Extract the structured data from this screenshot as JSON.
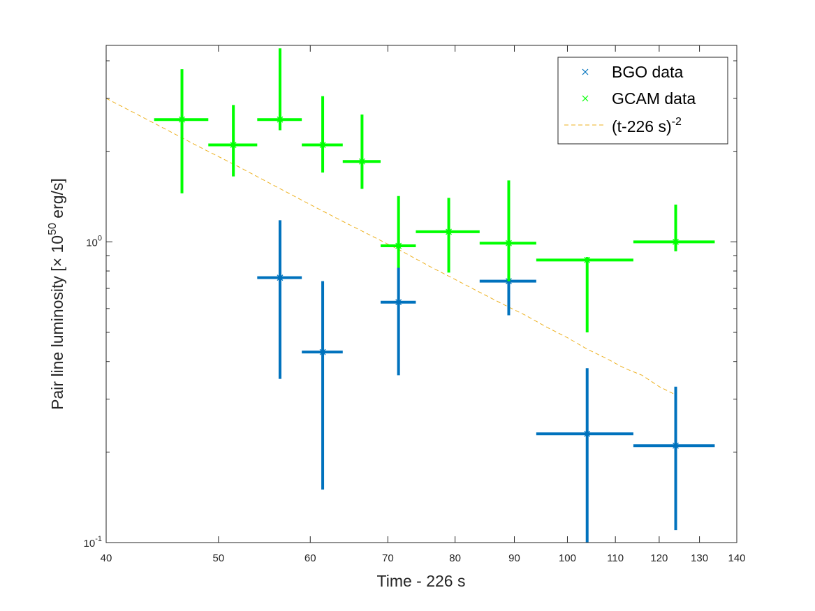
{
  "chart_data": {
    "type": "scatter",
    "xlabel": "Time - 226 s",
    "ylabel": {
      "prefix": "Pair line luminosity [",
      "times": "×",
      "base": " 10",
      "exponent": "50",
      "suffix": " erg/s]"
    },
    "x_scale": "log",
    "y_scale": "log",
    "xlim": [
      40,
      140
    ],
    "ylim": [
      0.1,
      4.5
    ],
    "x_ticks": [
      40,
      50,
      60,
      70,
      80,
      90,
      100,
      110,
      120,
      130,
      140
    ],
    "x_tick_labels": [
      "40",
      "50",
      "60",
      "70",
      "80",
      "90",
      "100",
      "110",
      "120",
      "130",
      "140"
    ],
    "y_ticks": [
      {
        "value": 0.1,
        "base": "10",
        "exp": "-1"
      },
      {
        "value": 1,
        "base": "10",
        "exp": "0"
      }
    ],
    "grid": false,
    "legend_position": "top-right",
    "series": [
      {
        "name": "BGO data",
        "color": "#0072bd",
        "marker": "x",
        "points": [
          {
            "x": 56.5,
            "xlo": 54,
            "xhi": 59,
            "y": 0.76,
            "ylo": 0.35,
            "yhi": 1.18
          },
          {
            "x": 61.5,
            "xlo": 59,
            "xhi": 64,
            "y": 0.43,
            "ylo": 0.15,
            "yhi": 0.74
          },
          {
            "x": 71.5,
            "xlo": 69,
            "xhi": 74,
            "y": 0.63,
            "ylo": 0.36,
            "yhi": 0.82
          },
          {
            "x": 89,
            "xlo": 84,
            "xhi": 94,
            "y": 0.74,
            "ylo": 0.57,
            "yhi": 0.78
          },
          {
            "x": 104,
            "xlo": 94,
            "xhi": 114,
            "y": 0.23,
            "ylo": 0.1,
            "yhi": 0.38
          },
          {
            "x": 124,
            "xlo": 114,
            "xhi": 134,
            "y": 0.21,
            "ylo": 0.11,
            "yhi": 0.33
          }
        ]
      },
      {
        "name": "GCAM data",
        "color": "#00ff00",
        "marker": "x",
        "points": [
          {
            "x": 46.5,
            "xlo": 44,
            "xhi": 49,
            "y": 2.55,
            "ylo": 1.45,
            "yhi": 3.75
          },
          {
            "x": 51.5,
            "xlo": 49,
            "xhi": 54,
            "y": 2.1,
            "ylo": 1.65,
            "yhi": 2.85
          },
          {
            "x": 56.5,
            "xlo": 54,
            "xhi": 59,
            "y": 2.55,
            "ylo": 2.35,
            "yhi": 4.4
          },
          {
            "x": 61.5,
            "xlo": 59,
            "xhi": 64,
            "y": 2.1,
            "ylo": 1.7,
            "yhi": 3.05
          },
          {
            "x": 66.5,
            "xlo": 64,
            "xhi": 69,
            "y": 1.85,
            "ylo": 1.5,
            "yhi": 2.65
          },
          {
            "x": 71.5,
            "xlo": 69,
            "xhi": 74,
            "y": 0.97,
            "ylo": 0.82,
            "yhi": 1.42
          },
          {
            "x": 79,
            "xlo": 74,
            "xhi": 84,
            "y": 1.08,
            "ylo": 0.79,
            "yhi": 1.4
          },
          {
            "x": 89,
            "xlo": 84,
            "xhi": 94,
            "y": 0.99,
            "ylo": 0.74,
            "yhi": 1.6
          },
          {
            "x": 104,
            "xlo": 94,
            "xhi": 114,
            "y": 0.87,
            "ylo": 0.5,
            "yhi": 0.89
          },
          {
            "x": 124,
            "xlo": 114,
            "xhi": 134,
            "y": 1.0,
            "ylo": 0.93,
            "yhi": 1.33
          }
        ]
      }
    ],
    "model_line": {
      "name": "(t-226 s)",
      "name_exponent": "-2",
      "color": "#edb120",
      "style": "dashed",
      "x": [
        40,
        44,
        48,
        52,
        56,
        60,
        64,
        68,
        72,
        76,
        80,
        84,
        88,
        92,
        96,
        100,
        104,
        108,
        112,
        116,
        120,
        124
      ],
      "y": [
        3.0,
        2.48,
        2.08,
        1.78,
        1.53,
        1.33,
        1.17,
        1.04,
        0.93,
        0.83,
        0.75,
        0.68,
        0.62,
        0.57,
        0.52,
        0.48,
        0.44,
        0.41,
        0.38,
        0.36,
        0.33,
        0.31
      ]
    }
  }
}
